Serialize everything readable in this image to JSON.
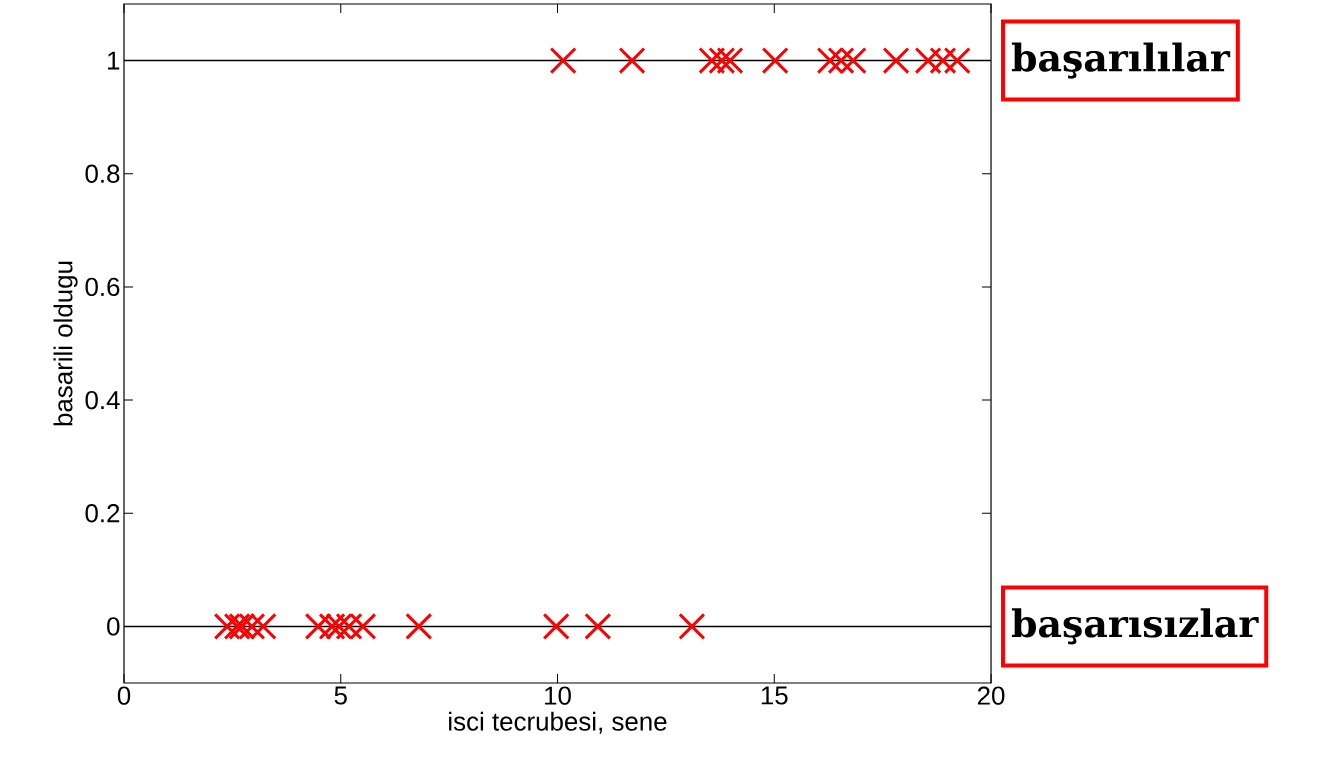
{
  "chart_data": {
    "type": "scatter",
    "xlabel": "isci tecrubesi, sene",
    "ylabel": "basarili oldugu",
    "x": [
      2.38,
      2.61,
      2.72,
      2.95,
      3.21,
      4.48,
      4.8,
      4.96,
      5.19,
      5.51,
      6.8,
      9.97,
      10.93,
      13.1,
      10.13,
      11.72,
      13.56,
      13.79,
      13.98,
      15.02,
      16.29,
      16.54,
      16.82,
      17.81,
      18.55,
      18.89,
      19.22
    ],
    "values": [
      0,
      0,
      0,
      0,
      0,
      0,
      0,
      0,
      0,
      0,
      0,
      0,
      0,
      0,
      1,
      1,
      1,
      1,
      1,
      1,
      1,
      1,
      1,
      1,
      1,
      1,
      1
    ],
    "color": "#ff0000",
    "marker": "cross",
    "xlim": [
      0,
      20
    ],
    "ylim": [
      -0.1,
      1.1
    ],
    "xticks": [
      0,
      5,
      10,
      15,
      20
    ],
    "yticks": [
      0,
      0.2,
      0.4,
      0.6,
      0.8,
      1
    ],
    "ref_lines": [
      {
        "axis": "y",
        "value": 0,
        "color": "#000000"
      },
      {
        "axis": "y",
        "value": 1,
        "color": "#000000"
      }
    ],
    "annotations": [
      "başarılılar",
      "başarısızlar"
    ],
    "grid": false
  }
}
